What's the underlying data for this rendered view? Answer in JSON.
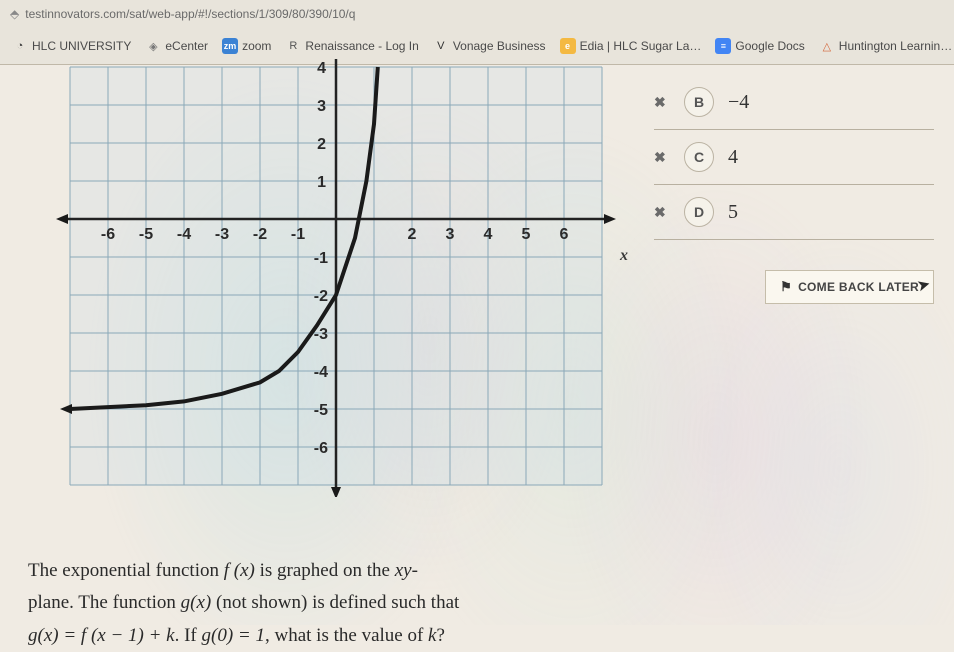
{
  "browser": {
    "url": "testinnovators.com/sat/web-app/#!/sections/1/309/80/390/10/q",
    "bookmarks": [
      {
        "label": "HLC UNIVERSITY",
        "icon": "◔",
        "icon_bg": "transparent",
        "icon_color": "#444"
      },
      {
        "label": "eCenter",
        "icon": "◈",
        "icon_bg": "transparent",
        "icon_color": "#777"
      },
      {
        "label": "zoom",
        "icon": "zm",
        "icon_bg": "#3b82d4",
        "icon_color": "#fff"
      },
      {
        "label": "Renaissance - Log In",
        "icon": "R",
        "icon_bg": "transparent",
        "icon_color": "#555"
      },
      {
        "label": "Vonage Business",
        "icon": "V",
        "icon_bg": "transparent",
        "icon_color": "#333"
      },
      {
        "label": "Edia | HLC Sugar La…",
        "icon": "e",
        "icon_bg": "#f4b942",
        "icon_color": "#fff"
      },
      {
        "label": "Google Docs",
        "icon": "≡",
        "icon_bg": "#4285f4",
        "icon_color": "#fff"
      },
      {
        "label": "Huntington Learnin…",
        "icon": "△",
        "icon_bg": "transparent",
        "icon_color": "#d4663b"
      }
    ]
  },
  "chart": {
    "type": "line",
    "x_label": "x",
    "xlim": [
      -7,
      7
    ],
    "ylim": [
      -7,
      4
    ],
    "xtick_labels_neg": [
      "-6",
      "-5",
      "-4",
      "-3",
      "-2",
      "-1"
    ],
    "xtick_labels_pos": [
      "2",
      "3",
      "4",
      "5",
      "6"
    ],
    "ytick_labels_pos": [
      "1",
      "2",
      "3",
      "4"
    ],
    "ytick_labels_neg": [
      "-1",
      "-2",
      "-3",
      "-4",
      "-5",
      "-6"
    ],
    "grid_color": "#8aa8b8",
    "axis_color": "#222222",
    "curve_color": "#1a1a1a",
    "background_fill": "rgba(200,220,230,0.25)",
    "curve_points": [
      [
        -7,
        -5
      ],
      [
        -6,
        -4.95
      ],
      [
        -5,
        -4.9
      ],
      [
        -4,
        -4.8
      ],
      [
        -3,
        -4.6
      ],
      [
        -2,
        -4.3
      ],
      [
        -1.5,
        -4.0
      ],
      [
        -1,
        -3.5
      ],
      [
        -0.5,
        -2.8
      ],
      [
        0,
        -2
      ],
      [
        0.5,
        -0.5
      ],
      [
        0.8,
        1.0
      ],
      [
        1.0,
        2.5
      ],
      [
        1.1,
        4.0
      ]
    ]
  },
  "answers": {
    "choices": [
      {
        "letter": "B",
        "value": "−4",
        "marked": true
      },
      {
        "letter": "C",
        "value": "4",
        "marked": true
      },
      {
        "letter": "D",
        "value": "5",
        "marked": true
      }
    ],
    "come_back_label": "COME BACK LATER"
  },
  "question": {
    "line1_a": "The exponential function ",
    "fx": "f (x)",
    "line1_b": " is graphed on the ",
    "xy": "xy",
    "line1_c": "-",
    "line2_a": "plane. The function ",
    "gx": "g(x)",
    "line2_b": " (not shown) is defined such that",
    "line3_a": "",
    "eq1": "g(x) = f (x − 1) + k",
    "line3_b": ". If ",
    "eq2": "g(0) = 1",
    "line3_c": ", what is the value of ",
    "kvar": "k",
    "line3_d": "?"
  }
}
